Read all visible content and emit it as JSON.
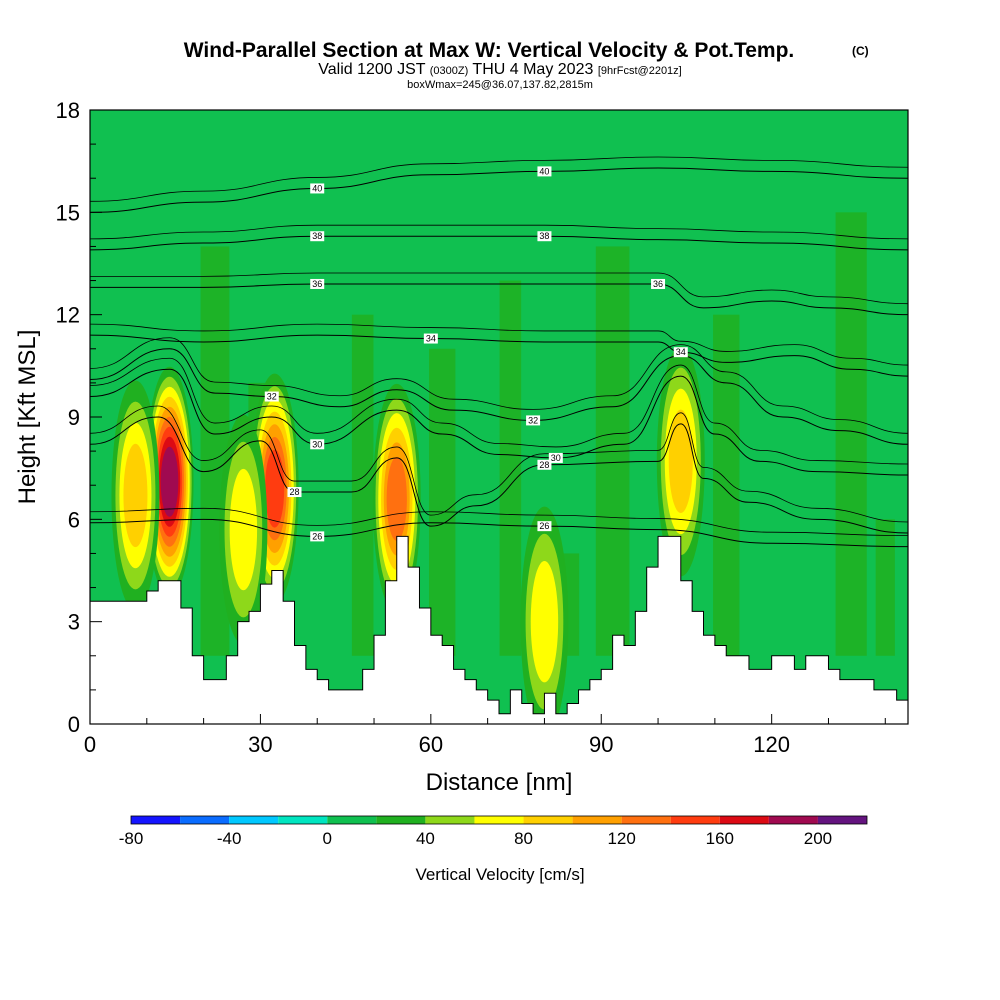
{
  "header": {
    "title": "Wind-Parallel Section at Max W: Vertical Velocity & Pot.Temp.",
    "title_mark": "(C)",
    "valid_a": "Valid 1200 JST",
    "valid_b": "(0300Z)",
    "valid_c": "THU 4 May 2023",
    "valid_d": "[9hrFcst@2201z]",
    "box_info": "boxWmax=245@36.07,137.82,2815m"
  },
  "chart_data": {
    "type": "heatmap",
    "xlabel": "Distance [nm]",
    "ylabel": "Height [Kft MSL]",
    "xlim": [
      0,
      144
    ],
    "ylim": [
      0,
      18
    ],
    "x_ticks": [
      "0",
      "30",
      "60",
      "90",
      "120"
    ],
    "x_tick_values": [
      0,
      30,
      60,
      90,
      120
    ],
    "y_ticks": [
      "0",
      "3",
      "6",
      "9",
      "12",
      "15",
      "18"
    ],
    "y_tick_values": [
      0,
      3,
      6,
      9,
      12,
      15,
      18
    ],
    "colorbar": {
      "label": "Vertical Velocity [cm/s]",
      "tick_labels": [
        "-80",
        "-40",
        "0",
        "40",
        "80",
        "120",
        "160",
        "200"
      ],
      "tick_values": [
        -80,
        -40,
        0,
        40,
        80,
        120,
        160,
        200
      ],
      "range": [
        -80,
        220
      ],
      "bin_width": 20,
      "colors": [
        "#1414ff",
        "#0a6cff",
        "#00c8ff",
        "#00e5c0",
        "#10c050",
        "#20b020",
        "#8ed81a",
        "#ffff00",
        "#ffd000",
        "#ffa000",
        "#ff7010",
        "#ff3c10",
        "#dc0a14",
        "#a00a50",
        "#64147f"
      ]
    },
    "terrain_profile": {
      "x": [
        0,
        4,
        8,
        10,
        12,
        14,
        16,
        18,
        20,
        22,
        24,
        26,
        28,
        30,
        32,
        34,
        36,
        38,
        40,
        42,
        44,
        46,
        48,
        50,
        52,
        54,
        56,
        58,
        60,
        62,
        64,
        66,
        68,
        70,
        72,
        74,
        76,
        78,
        80,
        82,
        84,
        86,
        88,
        90,
        92,
        94,
        96,
        98,
        100,
        102,
        104,
        106,
        108,
        110,
        112,
        114,
        116,
        118,
        120,
        122,
        124,
        126,
        128,
        130,
        132,
        134,
        136,
        138,
        140,
        142,
        144
      ],
      "height_kft": [
        3.6,
        3.6,
        3.6,
        3.9,
        4.2,
        4.2,
        3.4,
        2.0,
        1.3,
        1.3,
        2.0,
        3.0,
        3.3,
        4.1,
        4.5,
        3.6,
        2.3,
        1.6,
        1.3,
        1.0,
        1.0,
        1.0,
        1.6,
        2.6,
        4.2,
        5.5,
        4.6,
        3.4,
        2.6,
        2.3,
        1.6,
        1.3,
        1.0,
        0.7,
        0.3,
        1.0,
        0.6,
        0.3,
        0.9,
        0.3,
        0.6,
        1.0,
        1.3,
        1.6,
        2.6,
        2.3,
        3.3,
        4.6,
        5.5,
        5.5,
        4.2,
        3.3,
        2.6,
        2.3,
        2.0,
        2.0,
        1.6,
        1.6,
        2.0,
        2.0,
        1.6,
        2.0,
        2.0,
        1.6,
        1.3,
        1.3,
        1.3,
        1.0,
        1.0,
        0.7,
        0.7
      ]
    },
    "updraft_cores": [
      {
        "x": 14,
        "height_kft": 7.1,
        "max_vv_cm_s": 180
      },
      {
        "x": 8,
        "height_kft": 6.7,
        "max_vv_cm_s": 80
      },
      {
        "x": 32.5,
        "height_kft": 6.9,
        "max_vv_cm_s": 150
      },
      {
        "x": 27,
        "height_kft": 5.7,
        "max_vv_cm_s": 70
      },
      {
        "x": 54,
        "height_kft": 6.6,
        "max_vv_cm_s": 120
      },
      {
        "x": 104,
        "height_kft": 7.7,
        "max_vv_cm_s": 80
      },
      {
        "x": 80,
        "height_kft": 3.0,
        "max_vv_cm_s": 60
      }
    ],
    "theta_contours": [
      {
        "level": 26,
        "label": "26",
        "x": [
          0,
          20,
          40,
          60,
          80,
          100,
          120,
          144
        ],
        "height_kft": [
          5.9,
          6.0,
          5.5,
          5.9,
          5.8,
          5.7,
          5.3,
          5.2
        ]
      },
      {
        "level": 28,
        "label": "28",
        "x": [
          0,
          12,
          20,
          30,
          36,
          46,
          54,
          60,
          68,
          80,
          100,
          104,
          108,
          116,
          128,
          144
        ],
        "height_kft": [
          8.2,
          9.0,
          7.4,
          8.3,
          6.8,
          6.8,
          7.8,
          5.8,
          6.4,
          7.6,
          7.7,
          8.8,
          7.2,
          6.5,
          6.0,
          5.6
        ]
      },
      {
        "level": 30,
        "label": "30",
        "x": [
          0,
          14,
          22,
          32,
          40,
          54,
          62,
          72,
          82,
          94,
          104,
          110,
          118,
          128,
          144
        ],
        "height_kft": [
          9.6,
          10.4,
          8.5,
          9.0,
          8.2,
          9.2,
          8.5,
          7.9,
          7.8,
          8.2,
          10.2,
          8.5,
          7.7,
          7.4,
          7.3
        ]
      },
      {
        "level": 32,
        "label": "32",
        "x": [
          0,
          14,
          22,
          32,
          44,
          54,
          64,
          78,
          92,
          104,
          112,
          122,
          132,
          144
        ],
        "height_kft": [
          10.1,
          11.0,
          9.7,
          9.6,
          9.3,
          9.8,
          9.2,
          8.9,
          9.3,
          10.8,
          10.0,
          9.0,
          8.6,
          8.2
        ]
      },
      {
        "level": 34,
        "label": "34",
        "x": [
          0,
          20,
          40,
          60,
          80,
          100,
          104,
          112,
          124,
          134,
          144
        ],
        "height_kft": [
          11.4,
          11.2,
          11.4,
          11.3,
          11.2,
          11.2,
          10.9,
          10.6,
          10.8,
          10.4,
          10.2
        ]
      },
      {
        "level": 36,
        "label": "36",
        "x": [
          0,
          20,
          40,
          60,
          80,
          100,
          108,
          120,
          130,
          144
        ],
        "height_kft": [
          12.8,
          12.8,
          12.9,
          12.9,
          12.9,
          12.9,
          12.2,
          12.4,
          12.2,
          12.0
        ]
      },
      {
        "level": 38,
        "label": "38",
        "x": [
          0,
          20,
          40,
          60,
          80,
          100,
          120,
          144
        ],
        "height_kft": [
          13.9,
          14.1,
          14.3,
          14.3,
          14.3,
          14.2,
          14.1,
          13.9
        ]
      },
      {
        "level": 40,
        "label": "40",
        "x": [
          0,
          20,
          40,
          60,
          80,
          100,
          120,
          144
        ],
        "height_kft": [
          15.0,
          15.3,
          15.7,
          16.1,
          16.2,
          16.3,
          16.2,
          16.0
        ]
      }
    ]
  }
}
